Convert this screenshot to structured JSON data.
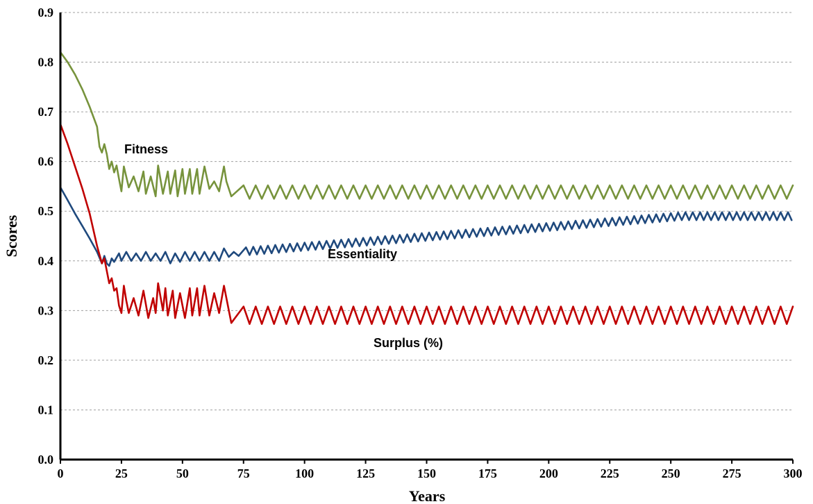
{
  "chart_data": {
    "type": "line",
    "title": "",
    "xlabel": "Years",
    "ylabel": "Scores",
    "xlim": [
      0,
      300
    ],
    "ylim": [
      0,
      0.9
    ],
    "x_ticks": [
      "0",
      "25",
      "50",
      "75",
      "100",
      "125",
      "150",
      "175",
      "200",
      "225",
      "250",
      "275",
      "300"
    ],
    "y_ticks": [
      "0.0",
      "0.1",
      "0.2",
      "0.3",
      "0.4",
      "0.5",
      "0.6",
      "0.7",
      "0.8",
      "0.9"
    ],
    "grid": "horizontal dashed",
    "series": [
      {
        "name": "Fitness",
        "color": "#77933c",
        "points": [
          [
            0,
            0.82
          ],
          [
            3,
            0.8
          ],
          [
            6,
            0.775
          ],
          [
            9,
            0.745
          ],
          [
            12,
            0.71
          ],
          [
            15,
            0.67
          ],
          [
            16,
            0.63
          ],
          [
            17,
            0.618
          ],
          [
            18,
            0.635
          ],
          [
            19,
            0.615
          ],
          [
            20,
            0.585
          ],
          [
            21,
            0.6
          ],
          [
            22,
            0.578
          ],
          [
            23,
            0.592
          ],
          [
            24,
            0.565
          ],
          [
            25,
            0.54
          ],
          [
            26,
            0.59
          ],
          [
            28,
            0.548
          ],
          [
            30,
            0.57
          ],
          [
            32,
            0.54
          ],
          [
            34,
            0.58
          ],
          [
            35,
            0.535
          ],
          [
            37,
            0.57
          ],
          [
            39,
            0.53
          ],
          [
            40,
            0.592
          ],
          [
            42,
            0.535
          ],
          [
            44,
            0.58
          ],
          [
            45,
            0.535
          ],
          [
            47,
            0.582
          ],
          [
            48,
            0.53
          ],
          [
            50,
            0.585
          ],
          [
            51,
            0.535
          ],
          [
            53,
            0.585
          ],
          [
            54,
            0.535
          ],
          [
            56,
            0.585
          ],
          [
            57,
            0.535
          ],
          [
            59,
            0.59
          ],
          [
            61,
            0.545
          ],
          [
            63,
            0.56
          ],
          [
            65,
            0.54
          ],
          [
            67,
            0.59
          ],
          [
            68,
            0.56
          ],
          [
            70,
            0.53
          ]
        ],
        "pattern": {
          "from": 70,
          "to": 300,
          "period": 5,
          "low": 0.525,
          "high": 0.552
        }
      },
      {
        "name": "Essentiality",
        "color": "#1f497d",
        "points": [
          [
            0,
            0.548
          ],
          [
            3,
            0.522
          ],
          [
            6,
            0.495
          ],
          [
            9,
            0.47
          ],
          [
            12,
            0.445
          ],
          [
            15,
            0.418
          ],
          [
            17,
            0.395
          ],
          [
            18,
            0.41
          ],
          [
            19,
            0.395
          ],
          [
            20,
            0.39
          ],
          [
            21,
            0.405
          ],
          [
            22,
            0.398
          ],
          [
            24,
            0.415
          ],
          [
            25,
            0.4
          ],
          [
            27,
            0.418
          ],
          [
            29,
            0.4
          ],
          [
            31,
            0.415
          ],
          [
            33,
            0.4
          ],
          [
            35,
            0.418
          ],
          [
            37,
            0.4
          ],
          [
            39,
            0.415
          ],
          [
            41,
            0.4
          ],
          [
            43,
            0.418
          ],
          [
            45,
            0.395
          ],
          [
            47,
            0.415
          ],
          [
            49,
            0.398
          ],
          [
            51,
            0.418
          ],
          [
            53,
            0.4
          ],
          [
            55,
            0.418
          ],
          [
            57,
            0.4
          ],
          [
            59,
            0.418
          ],
          [
            61,
            0.4
          ],
          [
            63,
            0.418
          ],
          [
            65,
            0.4
          ],
          [
            67,
            0.425
          ],
          [
            69,
            0.408
          ],
          [
            71,
            0.418
          ],
          [
            73,
            0.41
          ]
        ],
        "pattern": {
          "from": 73,
          "to": 300,
          "period": 3,
          "low_start": 0.41,
          "low_end": 0.482,
          "amplitude": 0.016
        }
      },
      {
        "name": "Surplus (%)",
        "color": "#c00000",
        "points": [
          [
            0,
            0.675
          ],
          [
            3,
            0.635
          ],
          [
            6,
            0.59
          ],
          [
            9,
            0.545
          ],
          [
            12,
            0.495
          ],
          [
            15,
            0.43
          ],
          [
            17,
            0.395
          ],
          [
            18,
            0.405
          ],
          [
            19,
            0.38
          ],
          [
            20,
            0.355
          ],
          [
            21,
            0.365
          ],
          [
            22,
            0.34
          ],
          [
            23,
            0.345
          ],
          [
            24,
            0.31
          ],
          [
            25,
            0.295
          ],
          [
            26,
            0.35
          ],
          [
            27,
            0.32
          ],
          [
            28,
            0.295
          ],
          [
            30,
            0.325
          ],
          [
            32,
            0.29
          ],
          [
            34,
            0.34
          ],
          [
            36,
            0.285
          ],
          [
            38,
            0.325
          ],
          [
            39,
            0.295
          ],
          [
            40,
            0.355
          ],
          [
            42,
            0.3
          ],
          [
            43,
            0.345
          ],
          [
            44,
            0.29
          ],
          [
            46,
            0.34
          ],
          [
            47,
            0.285
          ],
          [
            49,
            0.335
          ],
          [
            51,
            0.285
          ],
          [
            53,
            0.345
          ],
          [
            54,
            0.29
          ],
          [
            56,
            0.345
          ],
          [
            57,
            0.29
          ],
          [
            59,
            0.35
          ],
          [
            61,
            0.29
          ],
          [
            63,
            0.335
          ],
          [
            65,
            0.295
          ],
          [
            67,
            0.35
          ],
          [
            69,
            0.3
          ],
          [
            70,
            0.275
          ]
        ],
        "pattern": {
          "from": 70,
          "to": 300,
          "period": 5,
          "low": 0.273,
          "high": 0.308
        }
      }
    ]
  }
}
